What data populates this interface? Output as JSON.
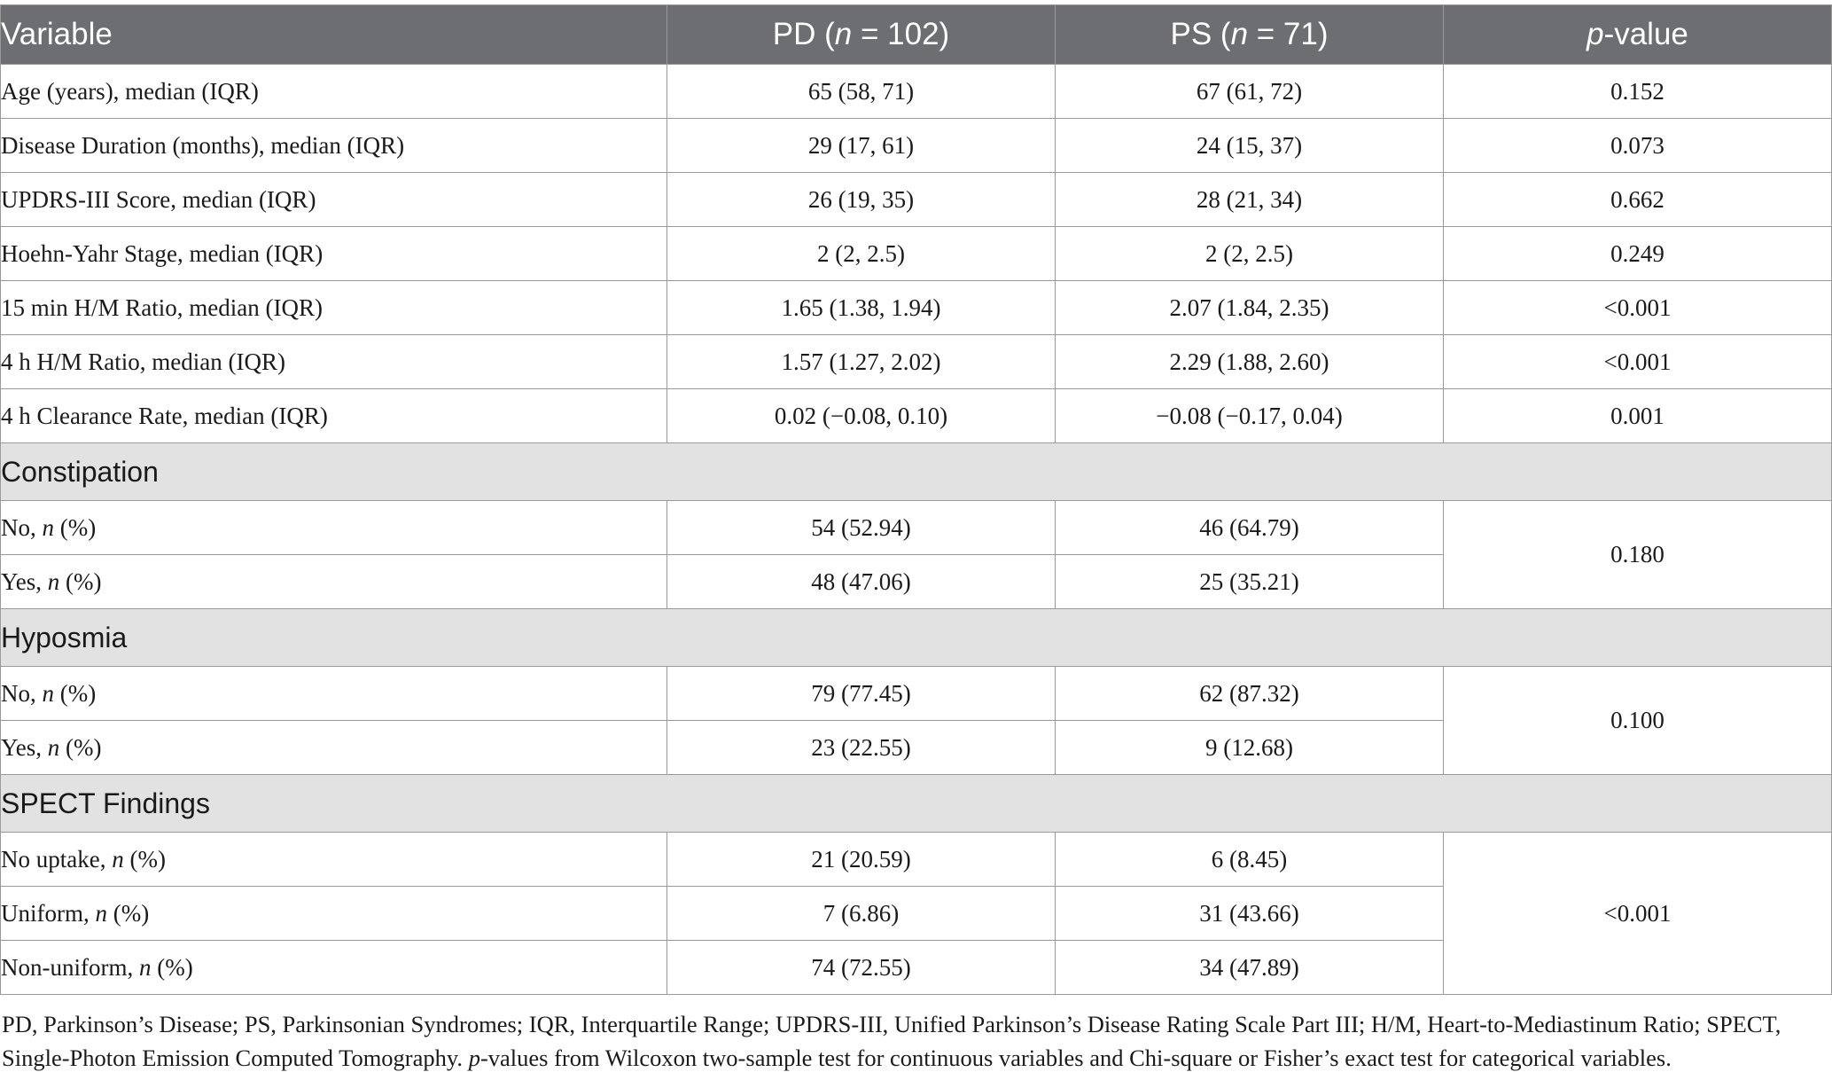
{
  "header": {
    "variable": "Variable",
    "pd": {
      "pre": "PD (",
      "n": "n",
      "post": " = 102)"
    },
    "ps": {
      "pre": "PS (",
      "n": "n",
      "post": " = 71)"
    },
    "pvalue": {
      "p": "p",
      "post": "-value"
    }
  },
  "continuous_rows": [
    {
      "label": "Age (years), median (IQR)",
      "pd": "65 (58, 71)",
      "ps": "67 (61, 72)",
      "p": "0.152"
    },
    {
      "label": "Disease Duration (months), median (IQR)",
      "pd": "29 (17, 61)",
      "ps": "24 (15, 37)",
      "p": "0.073"
    },
    {
      "label": "UPDRS-III Score, median (IQR)",
      "pd": "26 (19, 35)",
      "ps": "28 (21, 34)",
      "p": "0.662"
    },
    {
      "label": "Hoehn-Yahr Stage, median (IQR)",
      "pd": "2 (2, 2.5)",
      "ps": "2 (2, 2.5)",
      "p": "0.249"
    },
    {
      "label": "15 min H/M Ratio, median (IQR)",
      "pd": "1.65 (1.38, 1.94)",
      "ps": "2.07 (1.84, 2.35)",
      "p": "<0.001"
    },
    {
      "label": "4 h H/M Ratio, median (IQR)",
      "pd": "1.57 (1.27, 2.02)",
      "ps": "2.29 (1.88, 2.60)",
      "p": "<0.001"
    },
    {
      "label": "4 h Clearance Rate, median (IQR)",
      "pd": "0.02 (−0.08, 0.10)",
      "ps": "−0.08 (−0.17, 0.04)",
      "p": "0.001"
    }
  ],
  "sections": [
    {
      "title": "Constipation",
      "p": "0.180",
      "rows": [
        {
          "label": "No, ",
          "n": "n",
          "suffix": " (%)",
          "pd": "54 (52.94)",
          "ps": "46 (64.79)"
        },
        {
          "label": "Yes, ",
          "n": "n",
          "suffix": " (%)",
          "pd": "48 (47.06)",
          "ps": "25 (35.21)"
        }
      ]
    },
    {
      "title": "Hyposmia",
      "p": "0.100",
      "rows": [
        {
          "label": "No, ",
          "n": "n",
          "suffix": " (%)",
          "pd": "79 (77.45)",
          "ps": "62 (87.32)"
        },
        {
          "label": "Yes, ",
          "n": "n",
          "suffix": " (%)",
          "pd": "23 (22.55)",
          "ps": "9 (12.68)"
        }
      ]
    },
    {
      "title": "SPECT Findings",
      "p": "<0.001",
      "rows": [
        {
          "label": "No uptake, ",
          "n": "n",
          "suffix": " (%)",
          "pd": "21 (20.59)",
          "ps": "6 (8.45)"
        },
        {
          "label": "Uniform, ",
          "n": "n",
          "suffix": " (%)",
          "pd": "7 (6.86)",
          "ps": "31 (43.66)"
        },
        {
          "label": "Non-uniform, ",
          "n": "n",
          "suffix": " (%)",
          "pd": "74 (72.55)",
          "ps": "34 (47.89)"
        }
      ]
    }
  ],
  "footnote": {
    "part1": "PD, Parkinson’s Disease; PS, Parkinsonian Syndromes; IQR, Interquartile Range; UPDRS-III, Unified Parkinson’s Disease Rating Scale Part III; H/M, Heart-to-Mediastinum Ratio; SPECT, Single-Photon Emission Computed Tomography. ",
    "p": "p",
    "part2": "-values from Wilcoxon two-sample test for continuous variables and Chi-square or Fisher’s exact test for categorical variables."
  }
}
